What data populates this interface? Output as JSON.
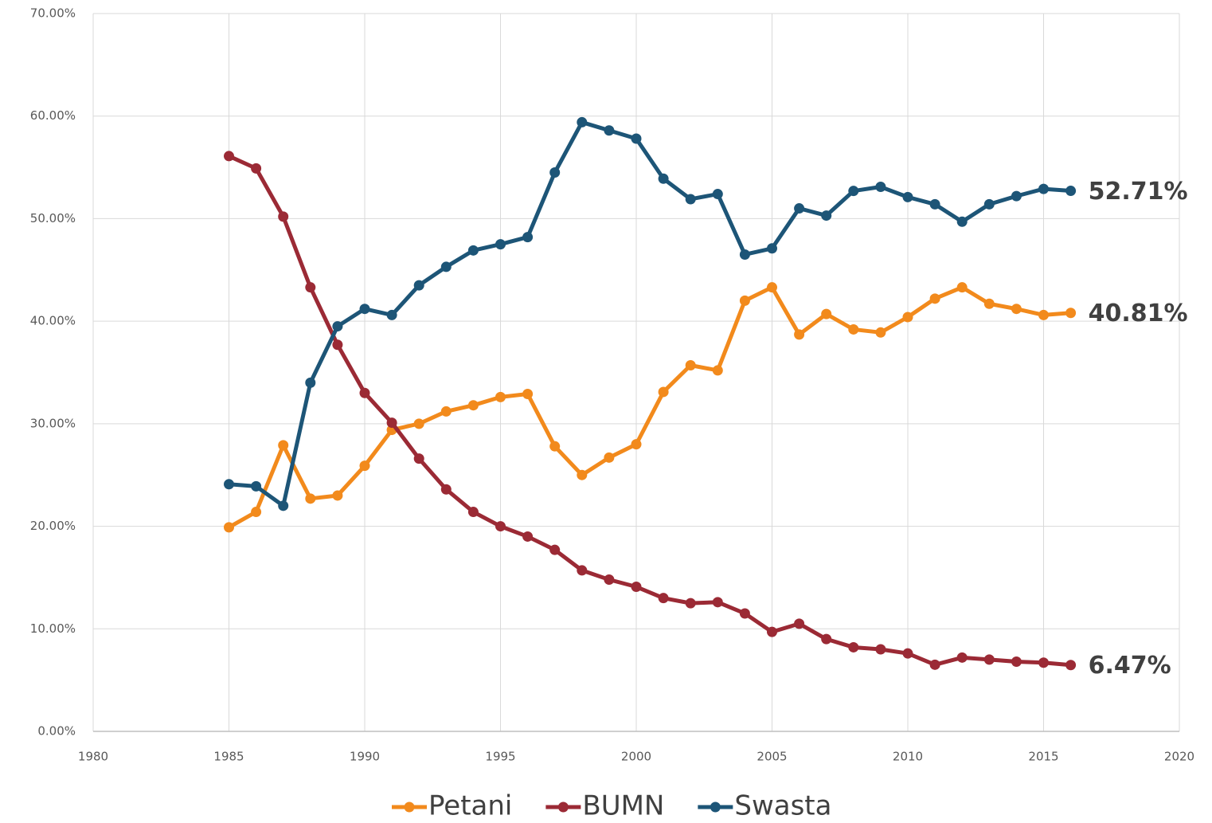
{
  "chart_data": {
    "type": "line",
    "x": [
      1985,
      1986,
      1987,
      1988,
      1989,
      1990,
      1991,
      1992,
      1993,
      1994,
      1995,
      1996,
      1997,
      1998,
      1999,
      2000,
      2001,
      2002,
      2003,
      2004,
      2005,
      2006,
      2007,
      2008,
      2009,
      2010,
      2011,
      2012,
      2013,
      2014,
      2015,
      2016
    ],
    "series": [
      {
        "name": "Petani",
        "color": "#f28a1c",
        "values": [
          19.9,
          21.4,
          27.9,
          22.7,
          23.0,
          25.9,
          29.4,
          30.0,
          31.2,
          31.8,
          32.6,
          32.9,
          27.8,
          25.0,
          26.7,
          28.0,
          33.1,
          35.7,
          35.2,
          42.0,
          43.3,
          38.7,
          40.7,
          39.2,
          38.9,
          40.4,
          42.2,
          43.3,
          41.7,
          41.2,
          40.6,
          40.81
        ],
        "value_labels": [
          null,
          null,
          null,
          null,
          null,
          null,
          null,
          null,
          null,
          null,
          null,
          null,
          null,
          null,
          null,
          null,
          null,
          null,
          null,
          null,
          null,
          null,
          null,
          null,
          null,
          null,
          null,
          null,
          null,
          null,
          null,
          "40.81%"
        ]
      },
      {
        "name": "BUMN",
        "color": "#9b2a35",
        "values": [
          56.1,
          54.9,
          50.2,
          43.3,
          37.7,
          33.0,
          30.1,
          26.6,
          23.6,
          21.4,
          20.0,
          19.0,
          17.7,
          15.7,
          14.8,
          14.1,
          13.0,
          12.5,
          12.6,
          11.5,
          9.7,
          10.5,
          9.0,
          8.2,
          8.0,
          7.6,
          6.5,
          7.2,
          7.0,
          6.8,
          6.7,
          6.47
        ],
        "value_labels": [
          null,
          null,
          null,
          null,
          null,
          null,
          null,
          null,
          null,
          null,
          null,
          null,
          null,
          null,
          null,
          null,
          null,
          null,
          null,
          null,
          null,
          null,
          null,
          null,
          null,
          null,
          null,
          null,
          null,
          null,
          null,
          "6.47%"
        ]
      },
      {
        "name": "Swasta",
        "color": "#1d5577",
        "values": [
          24.1,
          23.9,
          22.0,
          34.0,
          39.5,
          41.2,
          40.6,
          43.5,
          45.3,
          46.9,
          47.5,
          48.2,
          54.5,
          59.4,
          58.6,
          57.8,
          53.9,
          51.9,
          52.4,
          46.5,
          47.1,
          51.0,
          50.3,
          52.7,
          53.1,
          52.1,
          51.4,
          49.7,
          51.4,
          52.2,
          52.9,
          52.71
        ],
        "value_labels": [
          null,
          null,
          null,
          null,
          null,
          null,
          null,
          null,
          null,
          null,
          null,
          null,
          null,
          null,
          null,
          null,
          null,
          null,
          null,
          null,
          null,
          null,
          null,
          null,
          null,
          null,
          null,
          null,
          null,
          null,
          null,
          "52.71%"
        ]
      }
    ],
    "xlim": [
      1980,
      2020
    ],
    "xticks": [
      1980,
      1985,
      1990,
      1995,
      2000,
      2005,
      2010,
      2015,
      2020
    ],
    "ylim": [
      0,
      70
    ],
    "yticks": [
      {
        "value": 0,
        "label": "0.00%"
      },
      {
        "value": 10,
        "label": "10.00%"
      },
      {
        "value": 20,
        "label": "20.00%"
      },
      {
        "value": 30,
        "label": "30.00%"
      },
      {
        "value": 40,
        "label": "40.00%"
      },
      {
        "value": 50,
        "label": "50.00%"
      },
      {
        "value": 60,
        "label": "60.00%"
      },
      {
        "value": 70,
        "label": "70.00%"
      }
    ],
    "grid": true,
    "legend": "bottom"
  }
}
